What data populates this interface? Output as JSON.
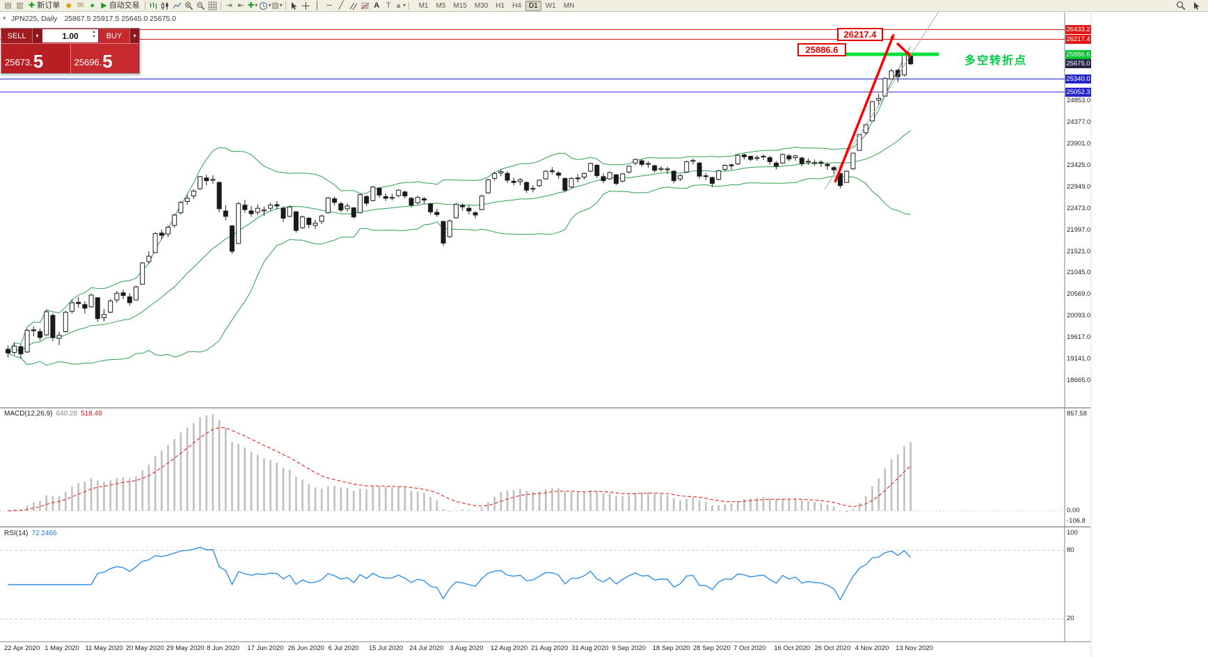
{
  "toolbar": {
    "items": [
      {
        "name": "new-chart-icon",
        "type": "icon"
      },
      {
        "name": "profiles-icon",
        "type": "icon"
      },
      {
        "name": "new-order-button",
        "type": "button",
        "label": "新订单"
      },
      {
        "name": "marketwatch-icon",
        "type": "icon"
      },
      {
        "name": "mail-icon",
        "type": "icon"
      },
      {
        "name": "community-icon",
        "type": "icon"
      },
      {
        "name": "autotrading-button",
        "type": "button",
        "label": "自动交易"
      },
      {
        "type": "divider"
      },
      {
        "name": "bar-chart-icon",
        "type": "icon"
      },
      {
        "name": "candlestick-chart-icon",
        "type": "icon"
      },
      {
        "name": "line-chart-icon",
        "type": "icon"
      },
      {
        "name": "zoom-in-icon",
        "type": "icon"
      },
      {
        "name": "zoom-out-icon",
        "type": "icon"
      },
      {
        "name": "grid-icon",
        "type": "icon"
      },
      {
        "type": "divider"
      },
      {
        "name": "autoscroll-icon",
        "type": "icon"
      },
      {
        "name": "chart-shift-icon",
        "type": "icon"
      },
      {
        "name": "indicators-icon",
        "type": "icon",
        "caret": true
      },
      {
        "name": "periods-icon",
        "type": "icon",
        "caret": true
      },
      {
        "name": "templates-icon",
        "type": "icon",
        "caret": true
      },
      {
        "type": "divider"
      },
      {
        "name": "cursor-icon",
        "type": "icon"
      },
      {
        "name": "crosshair-icon",
        "type": "icon"
      },
      {
        "name": "vline-icon",
        "type": "icon"
      },
      {
        "name": "hline-icon",
        "type": "icon"
      },
      {
        "name": "trendline-icon",
        "type": "icon"
      },
      {
        "name": "channel-icon",
        "type": "icon"
      },
      {
        "name": "fibonacci-icon",
        "type": "icon"
      },
      {
        "name": "text-icon",
        "type": "icon"
      },
      {
        "name": "label-icon",
        "type": "icon"
      },
      {
        "name": "shapes-icon",
        "type": "icon",
        "caret": true
      },
      {
        "type": "divider"
      }
    ],
    "timeframes": [
      "M1",
      "M5",
      "M15",
      "M30",
      "H1",
      "H4",
      "D1",
      "W1",
      "MN"
    ],
    "active_timeframe": "D1",
    "right_items": [
      {
        "name": "search-icon"
      },
      {
        "name": "pointer-icon"
      }
    ]
  },
  "chart_header": {
    "symbol": "JPN225, Daily",
    "ohlc": "25867.5 25917.5 25645.0 25675.0"
  },
  "trade_panel": {
    "sell_label": "SELL",
    "buy_label": "BUY",
    "volume": "1.00",
    "sell_price": "25673.",
    "sell_price_big": "5",
    "buy_price": "25696.",
    "buy_price_big": "5"
  },
  "annotations": {
    "level_box_1": "26217.4",
    "level_box_2": "25886.6",
    "turning_point_label": "多空转折点"
  },
  "chart_data": {
    "type": "candlestick",
    "symbol": "JPN225",
    "timeframe": "Daily",
    "price_lines": [
      {
        "price": 26433.2,
        "label": "26433.2",
        "color": "#e21414",
        "style": "solid"
      },
      {
        "price": 26217.4,
        "label": "26217.4",
        "color": "#e21414",
        "style": "solid"
      },
      {
        "price": 25886.6,
        "label": "25886.6",
        "color": "#00c42b",
        "style": "thick-segment"
      },
      {
        "price": 25675.0,
        "label": "25675.0",
        "color": "#26264a",
        "style": "tag-only"
      },
      {
        "price": 25340.0,
        "label": "25340.0",
        "color": "#2525cd",
        "style": "solid"
      },
      {
        "price": 25052.3,
        "label": "25052.3",
        "color": "#2525cd",
        "style": "solid"
      }
    ],
    "y_ticks": [
      "24853.0",
      "24377.0",
      "23901.0",
      "23425.0",
      "22949.0",
      "22473.0",
      "21997.0",
      "21521.0",
      "21045.0",
      "20569.0",
      "20093.0",
      "19617.0",
      "19141.0",
      "18665.0"
    ],
    "x_labels": [
      "22 Apr 2020",
      "1 May 2020",
      "11 May 2020",
      "20 May 2020",
      "29 May 2020",
      "8 Jun 2020",
      "17 Jun 2020",
      "26 Jun 2020",
      "6 Jul 2020",
      "15 Jul 2020",
      "24 Jul 2020",
      "3 Aug 2020",
      "12 Aug 2020",
      "21 Aug 2020",
      "31 Aug 2020",
      "9 Sep 2020",
      "18 Sep 2020",
      "28 Sep 2020",
      "7 Oct 2020",
      "16 Oct 2020",
      "26 Oct 2020",
      "4 Nov 2020",
      "13 Nov 2020"
    ],
    "bollinger_period": 20,
    "candles": [
      [
        19360,
        19440,
        19180,
        19280
      ],
      [
        19290,
        19500,
        19230,
        19430
      ],
      [
        19420,
        19460,
        19150,
        19260
      ],
      [
        19300,
        19810,
        19280,
        19780
      ],
      [
        19790,
        19870,
        19650,
        19770
      ],
      [
        19750,
        19820,
        19550,
        19620
      ],
      [
        19680,
        20240,
        19660,
        20190
      ],
      [
        20110,
        20160,
        19540,
        19620
      ],
      [
        19600,
        19750,
        19450,
        19670
      ],
      [
        19750,
        20210,
        19730,
        20180
      ],
      [
        20200,
        20450,
        20150,
        20390
      ],
      [
        20400,
        20520,
        20280,
        20370
      ],
      [
        20350,
        20420,
        20150,
        20270
      ],
      [
        20300,
        20590,
        20280,
        20560
      ],
      [
        20500,
        20510,
        19970,
        20040
      ],
      [
        20060,
        20250,
        19980,
        20130
      ],
      [
        20180,
        20470,
        20160,
        20430
      ],
      [
        20450,
        20650,
        20390,
        20600
      ],
      [
        20610,
        20680,
        20470,
        20550
      ],
      [
        20520,
        20600,
        20330,
        20390
      ],
      [
        20450,
        20770,
        20440,
        20740
      ],
      [
        20800,
        21290,
        20790,
        21270
      ],
      [
        21300,
        21530,
        21250,
        21420
      ],
      [
        21500,
        21950,
        21490,
        21920
      ],
      [
        21930,
        22010,
        21790,
        21880
      ],
      [
        21910,
        22100,
        21840,
        22060
      ],
      [
        22100,
        22360,
        22050,
        22330
      ],
      [
        22380,
        22640,
        22340,
        22610
      ],
      [
        22630,
        22790,
        22560,
        22700
      ],
      [
        22750,
        22900,
        22690,
        22860
      ],
      [
        22910,
        23190,
        22890,
        23180
      ],
      [
        23150,
        23220,
        22990,
        23090
      ],
      [
        23100,
        23210,
        23020,
        23120
      ],
      [
        23050,
        23080,
        22390,
        22470
      ],
      [
        22420,
        22550,
        22210,
        22300
      ],
      [
        22090,
        22110,
        21470,
        21530
      ],
      [
        21700,
        22620,
        21690,
        22580
      ],
      [
        22550,
        22660,
        22380,
        22450
      ],
      [
        22420,
        22530,
        22290,
        22360
      ],
      [
        22390,
        22560,
        22330,
        22480
      ],
      [
        22430,
        22520,
        22310,
        22440
      ],
      [
        22480,
        22600,
        22420,
        22550
      ],
      [
        22560,
        22640,
        22450,
        22530
      ],
      [
        22480,
        22520,
        22180,
        22260
      ],
      [
        22300,
        22540,
        22280,
        22510
      ],
      [
        22400,
        22420,
        21940,
        21990
      ],
      [
        22050,
        22320,
        22030,
        22290
      ],
      [
        22260,
        22290,
        22040,
        22120
      ],
      [
        22100,
        22230,
        22020,
        22150
      ],
      [
        22190,
        22340,
        22130,
        22310
      ],
      [
        22380,
        22730,
        22360,
        22710
      ],
      [
        22690,
        22740,
        22540,
        22610
      ],
      [
        22580,
        22620,
        22390,
        22440
      ],
      [
        22470,
        22590,
        22410,
        22530
      ],
      [
        22490,
        22500,
        22250,
        22290
      ],
      [
        22380,
        22800,
        22370,
        22780
      ],
      [
        22740,
        22770,
        22530,
        22590
      ],
      [
        22650,
        22970,
        22630,
        22950
      ],
      [
        22920,
        22950,
        22710,
        22770
      ],
      [
        22740,
        22810,
        22640,
        22700
      ],
      [
        22720,
        22800,
        22650,
        22720
      ],
      [
        22760,
        22900,
        22720,
        22880
      ],
      [
        22840,
        22870,
        22690,
        22750
      ],
      [
        22700,
        22730,
        22500,
        22550
      ],
      [
        22600,
        22750,
        22560,
        22720
      ],
      [
        22690,
        22730,
        22580,
        22660
      ],
      [
        22580,
        22600,
        22340,
        22400
      ],
      [
        22390,
        22470,
        22290,
        22340
      ],
      [
        22190,
        22200,
        21650,
        21710
      ],
      [
        21850,
        22230,
        21830,
        22200
      ],
      [
        22270,
        22600,
        22250,
        22570
      ],
      [
        22540,
        22590,
        22430,
        22510
      ],
      [
        22480,
        22550,
        22340,
        22420
      ],
      [
        22380,
        22420,
        22260,
        22330
      ],
      [
        22450,
        22780,
        22440,
        22750
      ],
      [
        22820,
        23130,
        22800,
        23110
      ],
      [
        23140,
        23280,
        23090,
        23250
      ],
      [
        23260,
        23340,
        23190,
        23290
      ],
      [
        23250,
        23300,
        23040,
        23100
      ],
      [
        23080,
        23160,
        22990,
        23050
      ],
      [
        23070,
        23150,
        22990,
        23110
      ],
      [
        23050,
        23080,
        22820,
        22880
      ],
      [
        22900,
        22990,
        22830,
        22920
      ],
      [
        22980,
        23120,
        22950,
        23100
      ],
      [
        23130,
        23320,
        23110,
        23300
      ],
      [
        23310,
        23390,
        23230,
        23290
      ],
      [
        23260,
        23300,
        23130,
        23210
      ],
      [
        23140,
        23160,
        22830,
        22880
      ],
      [
        22950,
        23170,
        22930,
        23140
      ],
      [
        23150,
        23230,
        23050,
        23140
      ],
      [
        23170,
        23270,
        23110,
        23250
      ],
      [
        23300,
        23490,
        23280,
        23470
      ],
      [
        23430,
        23460,
        23150,
        23200
      ],
      [
        23180,
        23250,
        23040,
        23090
      ],
      [
        23130,
        23290,
        23100,
        23270
      ],
      [
        23220,
        23240,
        22990,
        23030
      ],
      [
        23080,
        23260,
        23050,
        23240
      ],
      [
        23280,
        23430,
        23250,
        23410
      ],
      [
        23480,
        23580,
        23430,
        23560
      ],
      [
        23530,
        23560,
        23400,
        23450
      ],
      [
        23460,
        23520,
        23380,
        23470
      ],
      [
        23420,
        23450,
        23270,
        23320
      ],
      [
        23340,
        23410,
        23290,
        23360
      ],
      [
        23330,
        23400,
        23240,
        23350
      ],
      [
        23300,
        23320,
        23030,
        23090
      ],
      [
        23130,
        23230,
        23080,
        23200
      ],
      [
        23280,
        23530,
        23260,
        23510
      ],
      [
        23520,
        23580,
        23450,
        23540
      ],
      [
        23480,
        23510,
        23130,
        23190
      ],
      [
        23200,
        23260,
        23100,
        23190
      ],
      [
        23160,
        23180,
        22950,
        23030
      ],
      [
        23120,
        23330,
        23100,
        23310
      ],
      [
        23340,
        23450,
        23300,
        23430
      ],
      [
        23440,
        23470,
        23340,
        23420
      ],
      [
        23460,
        23670,
        23440,
        23650
      ],
      [
        23660,
        23690,
        23560,
        23620
      ],
      [
        23630,
        23640,
        23520,
        23560
      ],
      [
        23580,
        23650,
        23530,
        23600
      ],
      [
        23620,
        23670,
        23550,
        23630
      ],
      [
        23600,
        23640,
        23440,
        23510
      ],
      [
        23480,
        23520,
        23340,
        23410
      ],
      [
        23480,
        23690,
        23460,
        23670
      ],
      [
        23640,
        23680,
        23520,
        23570
      ],
      [
        23600,
        23660,
        23530,
        23640
      ],
      [
        23590,
        23620,
        23410,
        23470
      ],
      [
        23500,
        23580,
        23440,
        23520
      ],
      [
        23490,
        23560,
        23420,
        23490
      ],
      [
        23500,
        23540,
        23390,
        23480
      ],
      [
        23450,
        23480,
        23330,
        23420
      ],
      [
        23380,
        23420,
        23240,
        23330
      ],
      [
        23250,
        23260,
        22920,
        22980
      ],
      [
        23050,
        23320,
        23040,
        23300
      ],
      [
        23350,
        23710,
        23330,
        23700
      ],
      [
        23760,
        24120,
        23750,
        24110
      ],
      [
        24150,
        24350,
        24100,
        24330
      ],
      [
        24410,
        24850,
        24400,
        24840
      ],
      [
        24870,
        25010,
        24750,
        24910
      ],
      [
        24960,
        25380,
        24950,
        25350
      ],
      [
        25340,
        25560,
        25330,
        25520
      ],
      [
        25530,
        25560,
        25270,
        25390
      ],
      [
        25430,
        25920,
        25400,
        25910
      ],
      [
        25867.5,
        25917.5,
        25645.0,
        25675.0
      ]
    ],
    "macd": {
      "label": "MACD(12,26,9)",
      "value_main": "640.28",
      "value_signal": "518.49",
      "axis": [
        "857.58",
        "0.00",
        "-106.8"
      ],
      "params": [
        12,
        26,
        9
      ]
    },
    "rsi": {
      "label": "RSI(14)",
      "value": "72.2466",
      "axis": [
        "100",
        "80",
        "20"
      ],
      "levels": [
        80,
        20
      ],
      "period": 14
    }
  }
}
